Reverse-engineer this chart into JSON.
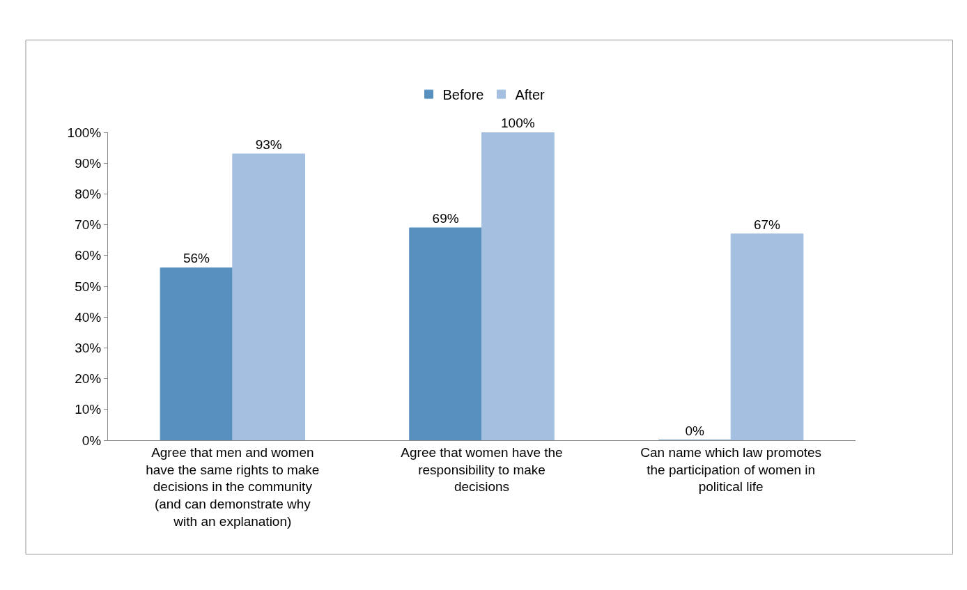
{
  "chart_data": {
    "type": "bar",
    "categories": [
      "Agree that men and women\nhave the same rights to make\ndecisions in the community\n(and can demonstrate why\nwith an explanation)",
      "Agree that women have the\nresponsibility to make\ndecisions",
      "Can name which law promotes\nthe participation of women in\npolitical life"
    ],
    "series": [
      {
        "name": "Before",
        "color": "#5790bf",
        "values": [
          56,
          69,
          0
        ],
        "value_labels": [
          "56%",
          "69%",
          "0%"
        ]
      },
      {
        "name": "After",
        "color": "#a4bfe0",
        "values": [
          93,
          100,
          67
        ],
        "value_labels": [
          "93%",
          "100%",
          "67%"
        ]
      }
    ],
    "ylim": [
      0,
      100
    ],
    "yticks": [
      {
        "value": 0,
        "label": "0%"
      },
      {
        "value": 10,
        "label": "10%"
      },
      {
        "value": 20,
        "label": "20%"
      },
      {
        "value": 30,
        "label": "30%"
      },
      {
        "value": 40,
        "label": "40%"
      },
      {
        "value": 50,
        "label": "50%"
      },
      {
        "value": 60,
        "label": "60%"
      },
      {
        "value": 70,
        "label": "70%"
      },
      {
        "value": 80,
        "label": "80%"
      },
      {
        "value": 90,
        "label": "90%"
      },
      {
        "value": 100,
        "label": "100%"
      }
    ],
    "grid": false,
    "legend": "top"
  }
}
